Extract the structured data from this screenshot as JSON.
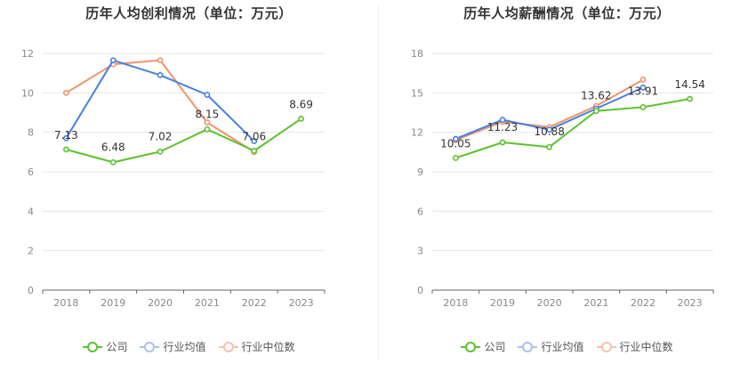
{
  "charts": [
    {
      "id": "left",
      "title": "历年人均创利情况（单位：万元）"
    },
    {
      "id": "right",
      "title": "历年人均薪酬情况（单位：万元）"
    }
  ],
  "legend": [
    {
      "name": "公司",
      "color": "#5cc22e"
    },
    {
      "name": "行业均值",
      "color": "#4a7ee0"
    },
    {
      "name": "行业中位数",
      "color": "#f0936a"
    }
  ],
  "chart_data": [
    {
      "type": "line",
      "title": "历年人均创利情况（单位：万元）",
      "categories": [
        "2018",
        "2019",
        "2020",
        "2021",
        "2022",
        "2023"
      ],
      "ylim": [
        0,
        12
      ],
      "yticks": [
        0,
        2,
        4,
        6,
        8,
        10,
        12
      ],
      "grid": true,
      "legend_position": "bottom",
      "series": [
        {
          "name": "公司",
          "color": "#5cc22e",
          "values": [
            7.13,
            6.48,
            7.02,
            8.15,
            7.06,
            8.69
          ],
          "labels": [
            "7.13",
            "6.48",
            "7.02",
            "8.15",
            "7.06",
            "8.69"
          ]
        },
        {
          "name": "行业均值",
          "color": "#4a7ee0",
          "values": [
            7.7,
            11.65,
            10.9,
            9.9,
            7.55,
            null
          ]
        },
        {
          "name": "行业中位数",
          "color": "#f0936a",
          "values": [
            10.0,
            11.45,
            11.65,
            8.5,
            7.0,
            null
          ]
        }
      ]
    },
    {
      "type": "line",
      "title": "历年人均薪酬情况（单位：万元）",
      "categories": [
        "2018",
        "2019",
        "2020",
        "2021",
        "2022",
        "2023"
      ],
      "ylim": [
        0,
        18
      ],
      "yticks": [
        0,
        3,
        6,
        9,
        12,
        15,
        18
      ],
      "grid": true,
      "legend_position": "bottom",
      "series": [
        {
          "name": "公司",
          "color": "#5cc22e",
          "values": [
            10.05,
            11.23,
            10.88,
            13.62,
            13.91,
            14.54
          ],
          "labels": [
            "10.05",
            "11.23",
            "10.88",
            "13.62",
            "13.91",
            "14.54"
          ]
        },
        {
          "name": "行业均值",
          "color": "#4a7ee0",
          "values": [
            11.5,
            12.95,
            12.2,
            13.8,
            15.4,
            null
          ]
        },
        {
          "name": "行业中位数",
          "color": "#f0936a",
          "values": [
            11.4,
            12.8,
            12.4,
            14.0,
            16.0,
            null
          ]
        }
      ]
    }
  ]
}
